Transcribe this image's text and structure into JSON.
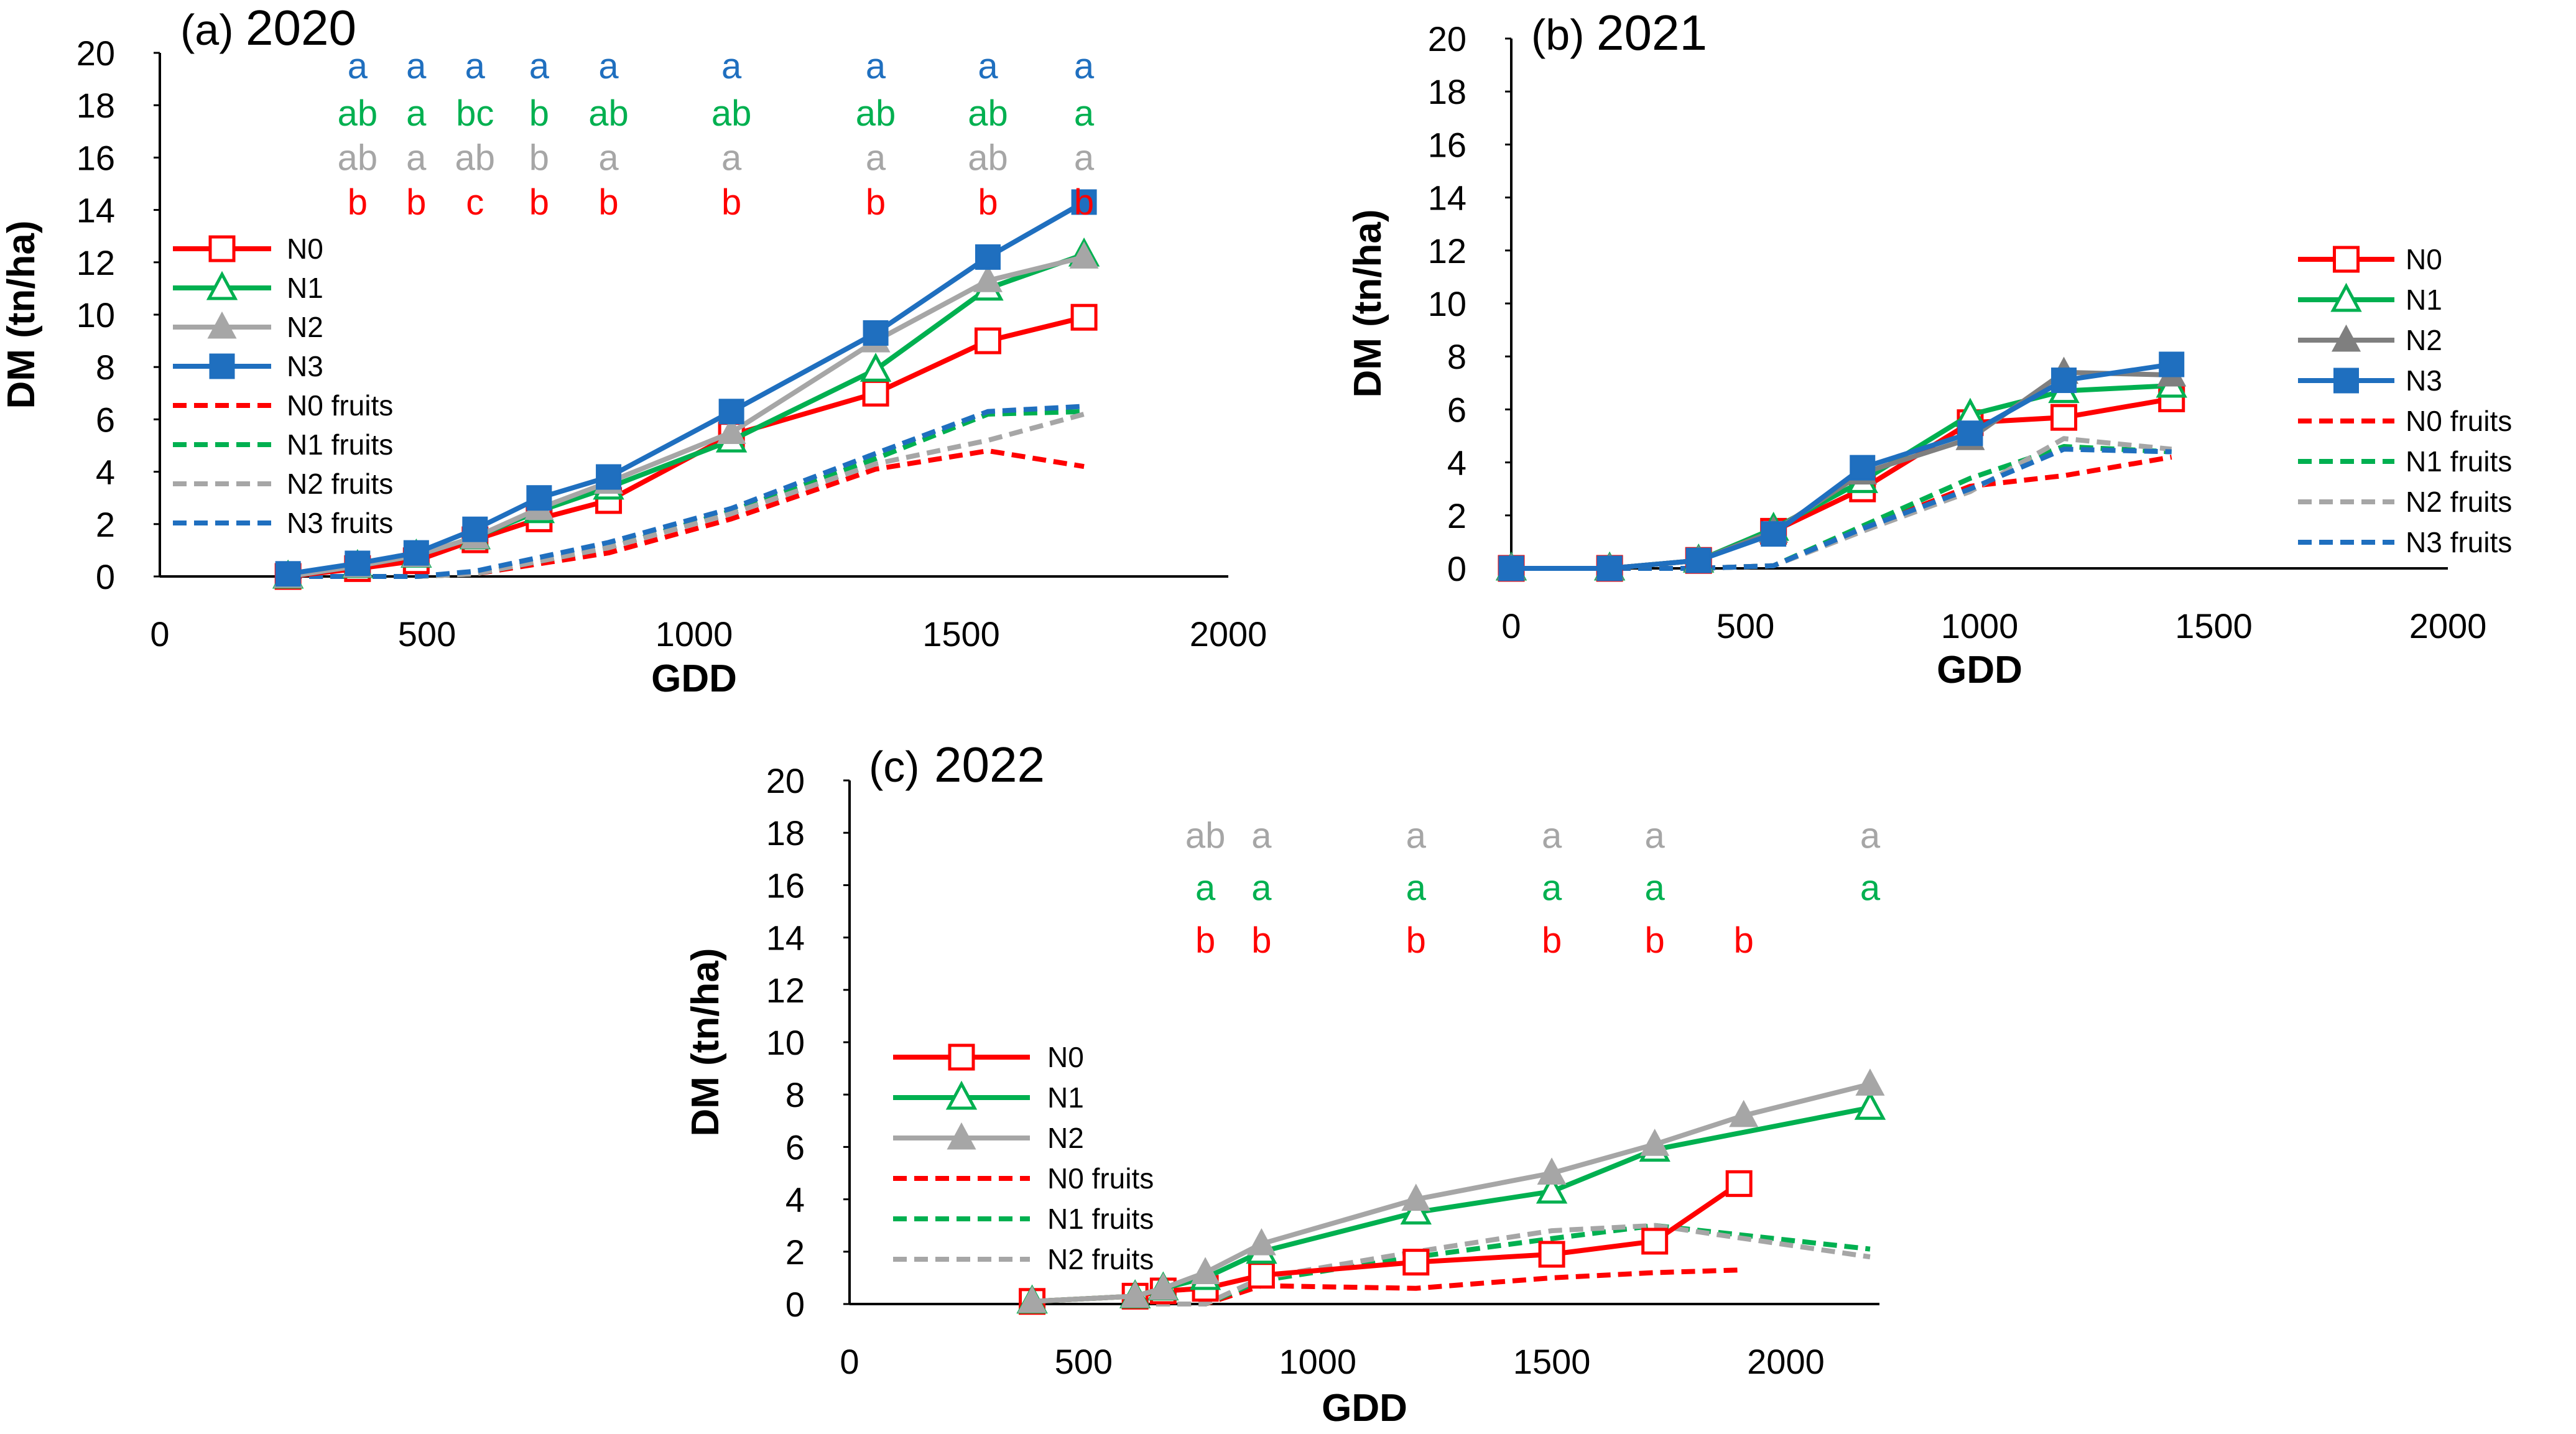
{
  "chart_data": [
    {
      "type": "line",
      "panel_label": "(a)",
      "title": "2020",
      "xlabel": "GDD",
      "ylabel": "DM (tn/ha)",
      "xlim": [
        0,
        2000
      ],
      "ylim": [
        0,
        20
      ],
      "xticks": [
        0,
        500,
        1000,
        1500,
        2000
      ],
      "yticks": [
        0,
        2,
        4,
        6,
        8,
        10,
        12,
        14,
        16,
        18,
        20
      ],
      "legend_position": "left",
      "series": [
        {
          "name": "N0",
          "color": "#ff0000",
          "style": "solid",
          "marker": "open-square",
          "x": [
            240,
            370,
            480,
            590,
            710,
            840,
            1070,
            1340,
            1550,
            1730
          ],
          "y": [
            0.0,
            0.3,
            0.6,
            1.4,
            2.2,
            2.9,
            5.4,
            7.0,
            9.0,
            9.9
          ]
        },
        {
          "name": "N1",
          "color": "#00b050",
          "style": "solid",
          "marker": "open-triangle",
          "x": [
            240,
            370,
            480,
            590,
            710,
            840,
            1070,
            1340,
            1550,
            1730
          ],
          "y": [
            0.0,
            0.4,
            0.8,
            1.5,
            2.5,
            3.4,
            5.2,
            7.9,
            11.0,
            12.3
          ]
        },
        {
          "name": "N2",
          "color": "#a6a6a6",
          "style": "solid",
          "marker": "filled-triangle",
          "x": [
            240,
            370,
            480,
            590,
            710,
            840,
            1070,
            1340,
            1550,
            1730
          ],
          "y": [
            0.0,
            0.4,
            0.8,
            1.5,
            2.6,
            3.6,
            5.5,
            9.0,
            11.3,
            12.2
          ]
        },
        {
          "name": "N3",
          "color": "#1f6fbf",
          "style": "solid",
          "marker": "filled-square",
          "x": [
            240,
            370,
            480,
            590,
            710,
            840,
            1070,
            1340,
            1550,
            1730
          ],
          "y": [
            0.1,
            0.5,
            0.9,
            1.8,
            3.0,
            3.8,
            6.3,
            9.3,
            12.2,
            14.3
          ]
        },
        {
          "name": "N0 fruits",
          "color": "#ff0000",
          "style": "dashed",
          "x": [
            240,
            480,
            590,
            840,
            1070,
            1340,
            1550,
            1730
          ],
          "y": [
            0.0,
            0.0,
            0.1,
            0.9,
            2.2,
            4.1,
            4.8,
            4.2
          ]
        },
        {
          "name": "N1 fruits",
          "color": "#00b050",
          "style": "dashed",
          "x": [
            240,
            480,
            590,
            840,
            1070,
            1340,
            1550,
            1730
          ],
          "y": [
            0.0,
            0.0,
            0.1,
            1.1,
            2.5,
            4.5,
            6.2,
            6.3
          ]
        },
        {
          "name": "N2 fruits",
          "color": "#a6a6a6",
          "style": "dashed",
          "x": [
            240,
            480,
            590,
            840,
            1070,
            1340,
            1550,
            1730
          ],
          "y": [
            0.0,
            0.0,
            0.1,
            1.1,
            2.4,
            4.3,
            5.2,
            6.2
          ]
        },
        {
          "name": "N3 fruits",
          "color": "#1f6fbf",
          "style": "dashed",
          "x": [
            240,
            480,
            590,
            840,
            1070,
            1340,
            1550,
            1730
          ],
          "y": [
            0.0,
            0.0,
            0.2,
            1.3,
            2.6,
            4.7,
            6.3,
            6.5
          ]
        }
      ],
      "annotation_colors": [
        "#1f6fbf",
        "#00b050",
        "#a6a6a6",
        "#ff0000"
      ],
      "annotation_rows_y": [
        19.5,
        17.7,
        16.0,
        14.3
      ],
      "annotations": [
        {
          "x": 370,
          "labels": [
            "a",
            "ab",
            "ab",
            "b"
          ]
        },
        {
          "x": 480,
          "labels": [
            "a",
            "a",
            "a",
            "b"
          ]
        },
        {
          "x": 590,
          "labels": [
            "a",
            "bc",
            "ab",
            "c"
          ]
        },
        {
          "x": 710,
          "labels": [
            "a",
            "b",
            "b",
            "b"
          ]
        },
        {
          "x": 840,
          "labels": [
            "a",
            "ab",
            "a",
            "b"
          ]
        },
        {
          "x": 1070,
          "labels": [
            "a",
            "ab",
            "a",
            "b"
          ]
        },
        {
          "x": 1340,
          "labels": [
            "a",
            "ab",
            "a",
            "b"
          ]
        },
        {
          "x": 1550,
          "labels": [
            "a",
            "ab",
            "ab",
            "b"
          ]
        },
        {
          "x": 1730,
          "labels": [
            "a",
            "a",
            "a",
            "b"
          ]
        }
      ]
    },
    {
      "type": "line",
      "panel_label": "(b)",
      "title": "2021",
      "xlabel": "GDD",
      "ylabel": "DM (tn/ha)",
      "xlim": [
        0,
        2000
      ],
      "ylim": [
        0,
        20
      ],
      "xticks": [
        0,
        500,
        1000,
        1500,
        2000
      ],
      "yticks": [
        0,
        2,
        4,
        6,
        8,
        10,
        12,
        14,
        16,
        18,
        20
      ],
      "legend_position": "right",
      "series": [
        {
          "name": "N0",
          "color": "#ff0000",
          "style": "solid",
          "marker": "open-square",
          "x": [
            0,
            210,
            400,
            560,
            750,
            980,
            1180,
            1410
          ],
          "y": [
            0.0,
            0.0,
            0.3,
            1.4,
            3.0,
            5.5,
            5.7,
            6.4
          ]
        },
        {
          "name": "N1",
          "color": "#00b050",
          "style": "solid",
          "marker": "open-triangle",
          "x": [
            0,
            210,
            400,
            560,
            750,
            980,
            1180,
            1410
          ],
          "y": [
            0.0,
            0.0,
            0.3,
            1.5,
            3.3,
            5.8,
            6.7,
            6.9
          ]
        },
        {
          "name": "N2",
          "color": "#7f7f7f",
          "style": "solid",
          "marker": "filled-triangle",
          "x": [
            0,
            210,
            400,
            560,
            750,
            980,
            1180,
            1410
          ],
          "y": [
            0.0,
            0.0,
            0.3,
            1.4,
            3.6,
            4.9,
            7.4,
            7.3
          ]
        },
        {
          "name": "N3",
          "color": "#1f6fbf",
          "style": "solid",
          "marker": "filled-square",
          "x": [
            0,
            210,
            400,
            560,
            750,
            980,
            1180,
            1410
          ],
          "y": [
            0.0,
            0.0,
            0.3,
            1.3,
            3.8,
            5.1,
            7.1,
            7.7
          ]
        },
        {
          "name": "N0 fruits",
          "color": "#ff0000",
          "style": "dashed",
          "x": [
            0,
            400,
            560,
            750,
            980,
            1180,
            1410
          ],
          "y": [
            0.0,
            0.0,
            0.1,
            1.5,
            3.1,
            3.5,
            4.2
          ]
        },
        {
          "name": "N1 fruits",
          "color": "#00b050",
          "style": "dashed",
          "x": [
            0,
            400,
            560,
            750,
            980,
            1180,
            1410
          ],
          "y": [
            0.0,
            0.0,
            0.1,
            1.6,
            3.4,
            4.6,
            4.4
          ]
        },
        {
          "name": "N2 fruits",
          "color": "#a6a6a6",
          "style": "dashed",
          "x": [
            0,
            400,
            560,
            750,
            980,
            1180,
            1410
          ],
          "y": [
            0.0,
            0.0,
            0.1,
            1.4,
            2.9,
            4.9,
            4.5
          ]
        },
        {
          "name": "N3 fruits",
          "color": "#1f6fbf",
          "style": "dashed",
          "x": [
            0,
            400,
            560,
            750,
            980,
            1180,
            1410
          ],
          "y": [
            0.0,
            0.0,
            0.1,
            1.5,
            3.0,
            4.5,
            4.4
          ]
        }
      ],
      "annotations": []
    },
    {
      "type": "line",
      "panel_label": "(c)",
      "title": "2022",
      "xlabel": "GDD",
      "ylabel": "DM (tn/ha)",
      "xlim": [
        0,
        2200
      ],
      "ylim": [
        0,
        20
      ],
      "xticks": [
        0,
        500,
        1000,
        1500,
        2000
      ],
      "yticks": [
        0,
        2,
        4,
        6,
        8,
        10,
        12,
        14,
        16,
        18,
        20
      ],
      "legend_position": "left",
      "series": [
        {
          "name": "N0",
          "color": "#ff0000",
          "style": "solid",
          "marker": "open-square",
          "x": [
            390,
            610,
            670,
            760,
            880,
            1210,
            1500,
            1720,
            1900
          ],
          "y": [
            0.1,
            0.3,
            0.5,
            0.6,
            1.1,
            1.6,
            1.9,
            2.4,
            4.6
          ]
        },
        {
          "name": "N1",
          "color": "#00b050",
          "style": "solid",
          "marker": "open-triangle",
          "x": [
            390,
            610,
            670,
            760,
            880,
            1210,
            1500,
            1720,
            2180
          ],
          "y": [
            0.1,
            0.3,
            0.6,
            1.0,
            2.0,
            3.5,
            4.3,
            5.9,
            7.5
          ]
        },
        {
          "name": "N2",
          "color": "#a6a6a6",
          "style": "solid",
          "marker": "filled-triangle",
          "x": [
            390,
            610,
            670,
            760,
            880,
            1210,
            1500,
            1720,
            1910,
            2180
          ],
          "y": [
            0.1,
            0.3,
            0.6,
            1.2,
            2.3,
            4.0,
            5.0,
            6.1,
            7.2,
            8.4
          ]
        },
        {
          "name": "N0 fruits",
          "color": "#ff0000",
          "style": "dashed",
          "x": [
            610,
            760,
            880,
            1210,
            1500,
            1720,
            1900
          ],
          "y": [
            0.0,
            0.0,
            0.7,
            0.6,
            1.0,
            1.2,
            1.3
          ]
        },
        {
          "name": "N1 fruits",
          "color": "#00b050",
          "style": "dashed",
          "x": [
            610,
            760,
            880,
            1210,
            1500,
            1720,
            2180
          ],
          "y": [
            0.0,
            0.0,
            0.9,
            1.8,
            2.5,
            3.0,
            2.1
          ]
        },
        {
          "name": "N2 fruits",
          "color": "#a6a6a6",
          "style": "dashed",
          "x": [
            610,
            760,
            880,
            1210,
            1500,
            1720,
            2180
          ],
          "y": [
            0.0,
            0.0,
            1.0,
            2.0,
            2.8,
            3.0,
            1.8
          ]
        }
      ],
      "annotation_colors": [
        "#a6a6a6",
        "#00b050",
        "#ff0000"
      ],
      "annotation_rows_y": [
        17.9,
        15.9,
        13.9
      ],
      "annotations": [
        {
          "x": 760,
          "labels": [
            "ab",
            "a",
            "b"
          ]
        },
        {
          "x": 880,
          "labels": [
            "a",
            "a",
            "b"
          ]
        },
        {
          "x": 1210,
          "labels": [
            "a",
            "a",
            "b"
          ]
        },
        {
          "x": 1500,
          "labels": [
            "a",
            "a",
            "b"
          ]
        },
        {
          "x": 1720,
          "labels": [
            "a",
            "a",
            "b"
          ]
        },
        {
          "x": 1910,
          "labels": [
            "",
            "",
            "b"
          ]
        },
        {
          "x": 2180,
          "labels": [
            "a",
            "a",
            ""
          ]
        }
      ]
    }
  ]
}
